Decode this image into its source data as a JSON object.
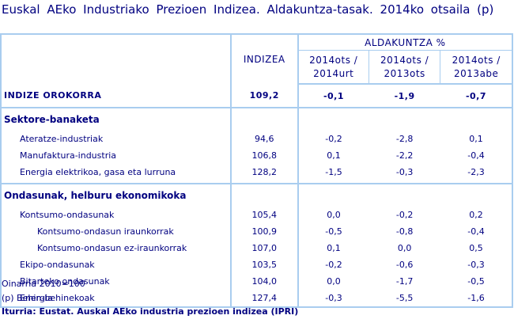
{
  "title": "Euskal AEko Industriako Prezioen Indizea. Aldakuntza-tasak. 2014ko otsaila (p)",
  "table": {
    "header": {
      "index_label": "INDIZEA",
      "group_label": "ALDAKUNTZA %",
      "columns": [
        {
          "line1": "2014ots /",
          "line2": "2014urt"
        },
        {
          "line1": "2014ots /",
          "line2": "2013ots"
        },
        {
          "line1": "2014ots /",
          "line2": "2013abe"
        }
      ]
    },
    "total": {
      "label": "INDIZE OROKORRA",
      "index": "109,2",
      "c1": "-0,1",
      "c2": "-1,9",
      "c3": "-0,7"
    },
    "sections": [
      {
        "title": "Sektore-banaketa",
        "rows": [
          {
            "label": "Ateratze-industriak",
            "index": "94,6",
            "c1": "-0,2",
            "c2": "-2,8",
            "c3": "0,1",
            "level": 1
          },
          {
            "label": "Manufaktura-industria",
            "index": "106,8",
            "c1": "0,1",
            "c2": "-2,2",
            "c3": "-0,4",
            "level": 1
          },
          {
            "label": "Energia elektrikoa, gasa eta lurruna",
            "index": "128,2",
            "c1": "-1,5",
            "c2": "-0,3",
            "c3": "-2,3",
            "level": 1
          }
        ]
      },
      {
        "title": "Ondasunak, helburu ekonomikoka",
        "rows": [
          {
            "label": "Kontsumo-ondasunak",
            "index": "105,4",
            "c1": "0,0",
            "c2": "-0,2",
            "c3": "0,2",
            "level": 1
          },
          {
            "label": "Kontsumo-ondasun iraunkorrak",
            "index": "100,9",
            "c1": "-0,5",
            "c2": "-0,8",
            "c3": "-0,4",
            "level": 2
          },
          {
            "label": "Kontsumo-ondasun ez-iraunkorrak",
            "index": "107,0",
            "c1": "0,1",
            "c2": "0,0",
            "c3": "0,5",
            "level": 2
          },
          {
            "label": "Ekipo-ondasunak",
            "index": "103,5",
            "c1": "-0,2",
            "c2": "-0,6",
            "c3": "-0,3",
            "level": 1
          },
          {
            "label": "Bitarteko ondasunak",
            "index": "104,0",
            "c1": "0,0",
            "c2": "-1,7",
            "c3": "-0,5",
            "level": 1
          },
          {
            "label": "Energia",
            "index": "127,4",
            "c1": "-0,3",
            "c2": "-5,5",
            "c3": "-1,6",
            "level": 1
          }
        ]
      }
    ]
  },
  "footer": {
    "base": "Oinarria 2010=100",
    "note": "(p) Behin-behinekoak",
    "source": "Iturria: Eustat. Auskal AEko industria prezioen indizea (IPRI)"
  },
  "colors": {
    "text": "#000080",
    "border": "#a9cdef"
  }
}
